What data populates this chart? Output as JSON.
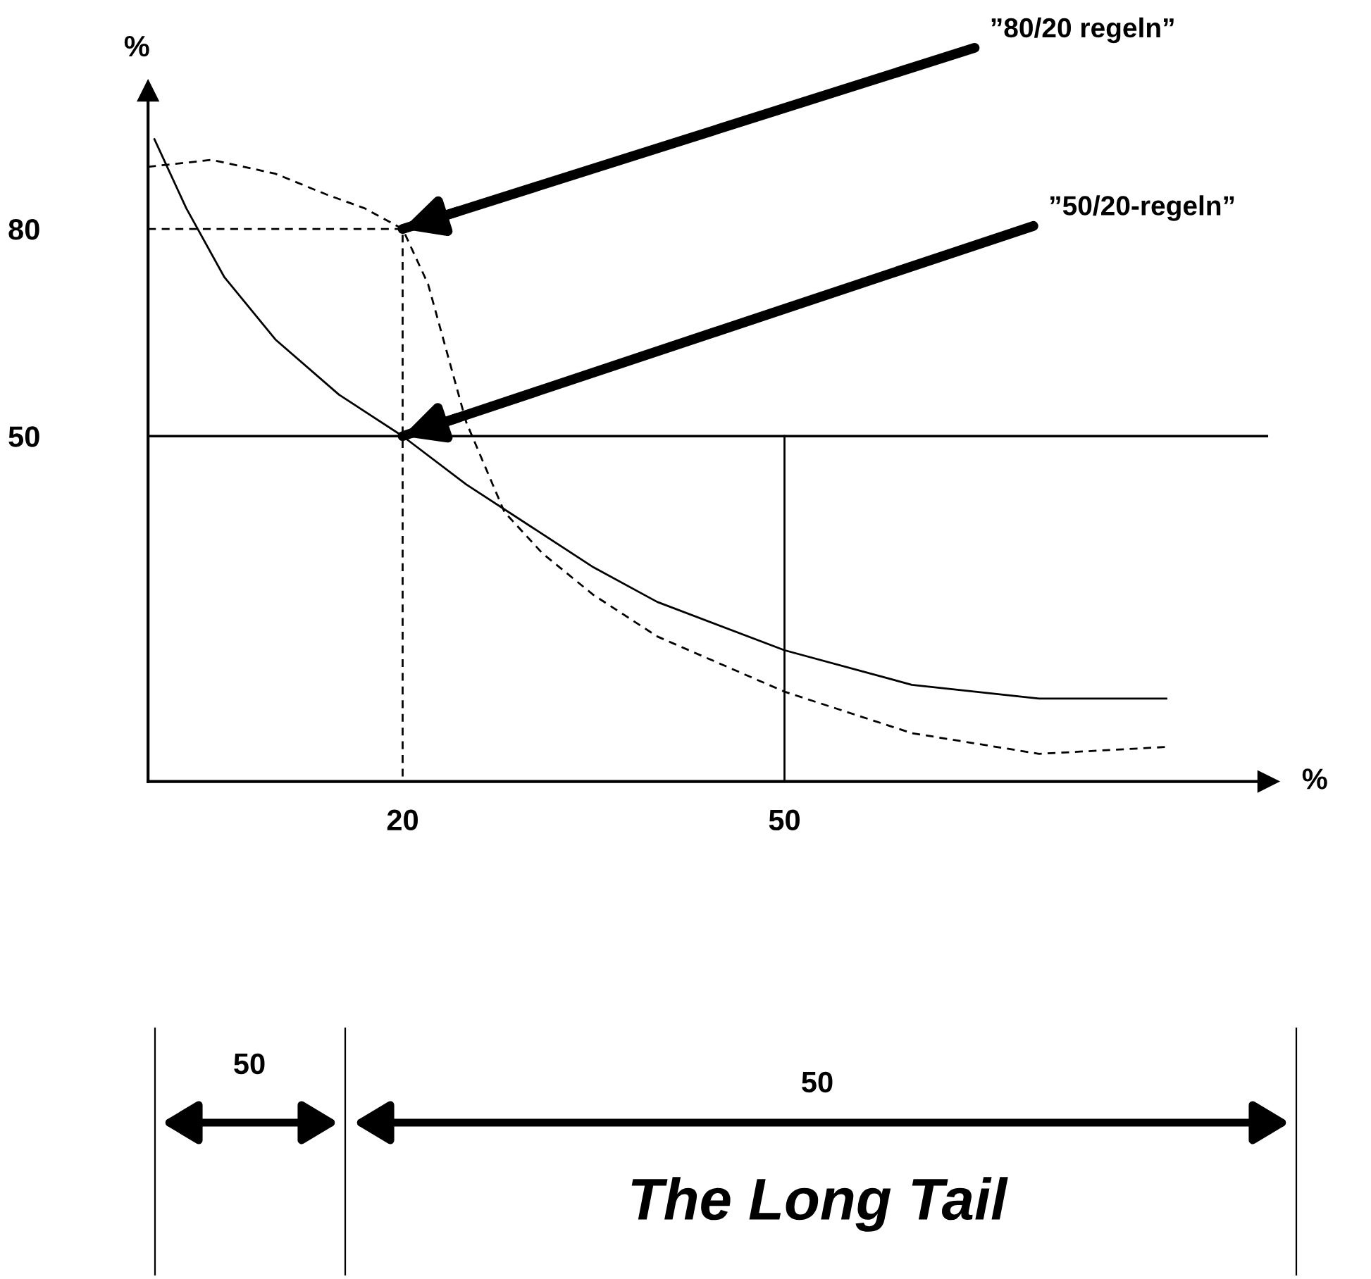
{
  "chart_data": {
    "type": "line",
    "xlabel": "%",
    "ylabel": "%",
    "xlim": [
      0,
      88
    ],
    "ylim": [
      0,
      100
    ],
    "xticks": [
      20,
      50
    ],
    "yticks": [
      50,
      80
    ],
    "grid": false,
    "legend": false,
    "series": [
      {
        "color": "#000000",
        "line_style": "solid",
        "x": [
          0.5,
          3,
          6,
          10,
          15,
          20,
          25,
          30,
          35,
          40,
          50,
          60,
          70,
          80
        ],
        "values": [
          93,
          83,
          73,
          64,
          56,
          50,
          43,
          37,
          31,
          26,
          19,
          14,
          12,
          12
        ]
      },
      {
        "color": "#000000",
        "line_style": "dashed",
        "x": [
          0,
          5,
          10,
          14,
          17,
          20,
          22,
          25,
          28,
          31,
          35,
          40,
          50,
          60,
          70,
          80
        ],
        "values": [
          89,
          90,
          88,
          85,
          83,
          80,
          72,
          52,
          39,
          33,
          27,
          21,
          13,
          7,
          4,
          5
        ]
      },
      {
        "color": "#000000",
        "line_style": "dashed",
        "x": [
          0,
          20,
          20
        ],
        "values": [
          80,
          80,
          0
        ]
      },
      {
        "color": "#000000",
        "line_style": "solid",
        "x": [
          50,
          50
        ],
        "values": [
          0,
          50
        ]
      }
    ],
    "ref_lines": [
      {
        "axis": "y",
        "value": 50,
        "label": null,
        "color": "#000000",
        "line_style": "solid"
      }
    ],
    "annotations": [
      {
        "text": "”80/20 regeln”",
        "x": 20,
        "y": 80
      },
      {
        "text": "”50/20-regeln”",
        "x": 20,
        "y": 50
      },
      "50",
      "50",
      "The Long Tail"
    ]
  }
}
